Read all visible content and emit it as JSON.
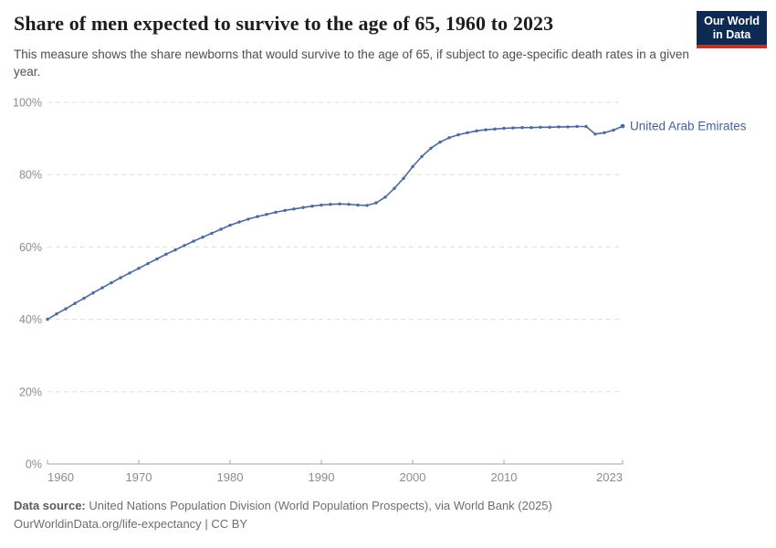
{
  "header": {
    "title": "Share of men expected to survive to the age of 65, 1960 to 2023",
    "subtitle": "This measure shows the share newborns that would survive to the age of 65, if subject to age-specific death rates in a given year.",
    "logo": {
      "line1": "Our World",
      "line2": "in Data"
    }
  },
  "chart_data": {
    "type": "line",
    "title": "Share of men expected to survive to the age of 65, 1960 to 2023",
    "xlabel": "",
    "ylabel": "",
    "xlim": [
      1960,
      2023
    ],
    "ylim": [
      0,
      100
    ],
    "grid": "horizontal-dashed",
    "legend": "line-end-label",
    "yticks": [
      0,
      20,
      40,
      60,
      80,
      100
    ],
    "ytick_format": "{}%",
    "xticks": [
      1960,
      1970,
      1980,
      1990,
      2000,
      2010,
      2023
    ],
    "x": [
      1960,
      1961,
      1962,
      1963,
      1964,
      1965,
      1966,
      1967,
      1968,
      1969,
      1970,
      1971,
      1972,
      1973,
      1974,
      1975,
      1976,
      1977,
      1978,
      1979,
      1980,
      1981,
      1982,
      1983,
      1984,
      1985,
      1986,
      1987,
      1988,
      1989,
      1990,
      1991,
      1992,
      1993,
      1994,
      1995,
      1996,
      1997,
      1998,
      1999,
      2000,
      2001,
      2002,
      2003,
      2004,
      2005,
      2006,
      2007,
      2008,
      2009,
      2010,
      2011,
      2012,
      2013,
      2014,
      2015,
      2016,
      2017,
      2018,
      2019,
      2020,
      2021,
      2022,
      2023
    ],
    "series": [
      {
        "name": "United Arab Emirates",
        "values": [
          40.0,
          41.5,
          42.9,
          44.4,
          45.8,
          47.3,
          48.7,
          50.1,
          51.5,
          52.8,
          54.1,
          55.4,
          56.7,
          58.0,
          59.2,
          60.4,
          61.6,
          62.7,
          63.8,
          64.9,
          66.0,
          66.9,
          67.7,
          68.4,
          69.0,
          69.6,
          70.1,
          70.5,
          70.9,
          71.3,
          71.6,
          71.8,
          71.9,
          71.8,
          71.6,
          71.5,
          72.2,
          73.8,
          76.2,
          79.0,
          82.2,
          85.0,
          87.3,
          89.0,
          90.2,
          91.0,
          91.6,
          92.1,
          92.4,
          92.6,
          92.8,
          92.9,
          93.0,
          93.0,
          93.1,
          93.1,
          93.2,
          93.2,
          93.3,
          93.3,
          91.2,
          91.6,
          92.3,
          93.4
        ]
      }
    ]
  },
  "footer": {
    "source_label": "Data source:",
    "source_text": "United Nations Population Division (World Population Prospects), via World Bank (2025)",
    "link": "OurWorldinData.org/life-expectancy",
    "divider": "|",
    "license": "CC BY"
  },
  "colors": {
    "line": "#4c6a9c",
    "entity_label": "#45639a",
    "grid": "#dddddd",
    "axis": "#a6a6a6",
    "tick_label": "#8c8c8c",
    "logo_bg": "#0d2b52",
    "logo_accent": "#cf2e1f"
  }
}
